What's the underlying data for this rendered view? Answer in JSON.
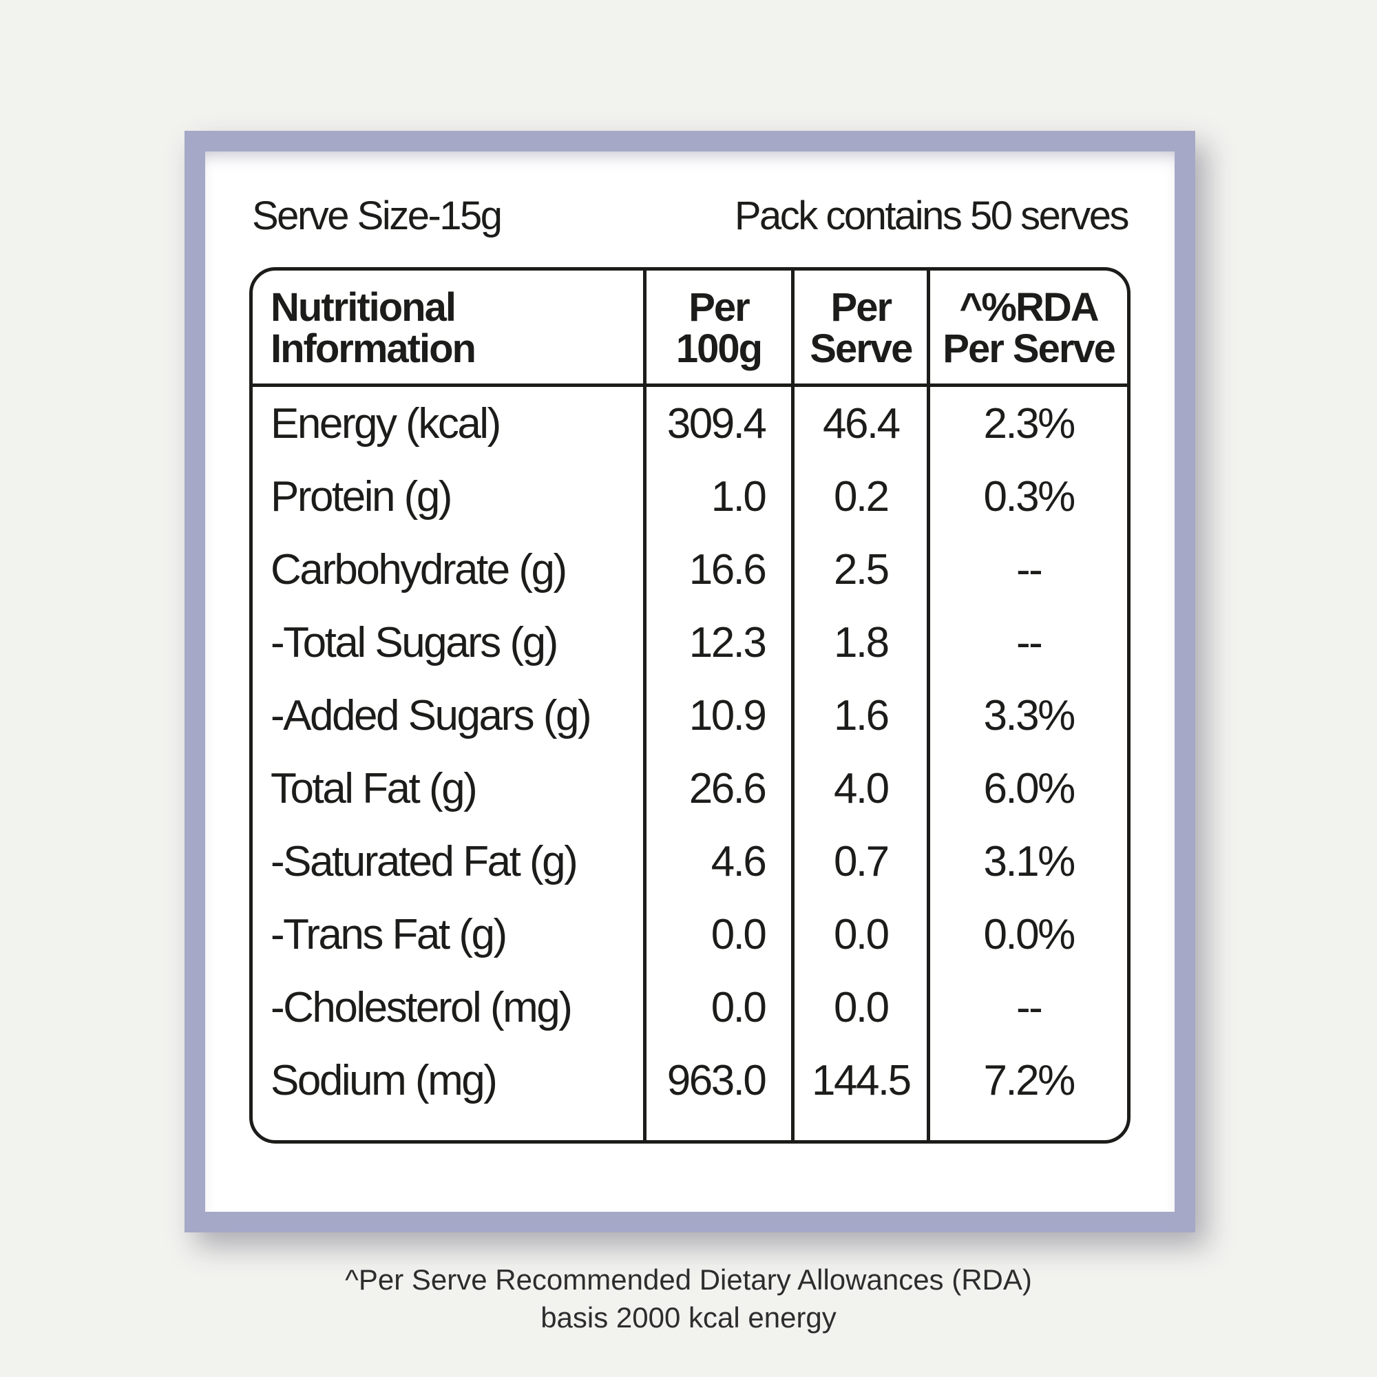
{
  "colors": {
    "background": "#f2f2ef",
    "frame": "#a6a8c7",
    "card": "#ffffff",
    "text": "#1c1c1a"
  },
  "label": {
    "serve_size": "Serve Size-15g",
    "pack_contains": "Pack contains 50 serves",
    "footnote_line1": "^Per Serve Recommended Dietary Allowances (RDA)",
    "footnote_line2": "basis 2000 kcal energy"
  },
  "table": {
    "headers": {
      "col1": "Nutritional\nInformation",
      "col2": "Per\n100g",
      "col3": "Per\nServe",
      "col4": "^%RDA\nPer Serve"
    },
    "rows": [
      {
        "label": "Energy (kcal)",
        "per100g": "309.4",
        "perServe": "46.4",
        "rda": "2.3%"
      },
      {
        "label": "Protein (g)",
        "per100g": "1.0",
        "perServe": "0.2",
        "rda": "0.3%"
      },
      {
        "label": "Carbohydrate (g)",
        "per100g": "16.6",
        "perServe": "2.5",
        "rda": "--"
      },
      {
        "label": "-Total Sugars (g)",
        "per100g": "12.3",
        "perServe": "1.8",
        "rda": "--"
      },
      {
        "label": "-Added Sugars (g)",
        "per100g": "10.9",
        "perServe": "1.6",
        "rda": "3.3%"
      },
      {
        "label": "Total Fat (g)",
        "per100g": "26.6",
        "perServe": "4.0",
        "rda": "6.0%"
      },
      {
        "label": "-Saturated Fat (g)",
        "per100g": "4.6",
        "perServe": "0.7",
        "rda": "3.1%"
      },
      {
        "label": "-Trans Fat (g)",
        "per100g": "0.0",
        "perServe": "0.0",
        "rda": "0.0%"
      },
      {
        "label": "-Cholesterol (mg)",
        "per100g": "0.0",
        "perServe": "0.0",
        "rda": "--"
      },
      {
        "label": "Sodium (mg)",
        "per100g": "963.0",
        "perServe": "144.5",
        "rda": "7.2%"
      }
    ]
  }
}
